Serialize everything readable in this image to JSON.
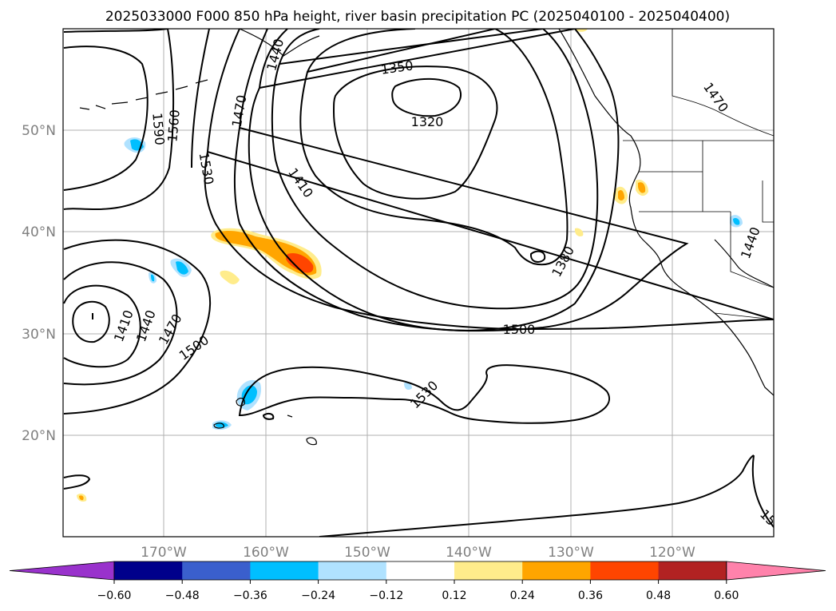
{
  "title": "2025033000 F000 850 hPa height, river basin precipitation PC (2025040100 - 2025040400)",
  "lat_labels": [
    "50°N",
    "40°N",
    "30°N",
    "20°N"
  ],
  "lon_labels": [
    "170°W",
    "160°W",
    "150°W",
    "140°W",
    "130°W",
    "120°W"
  ],
  "contour_labels": [
    "1320",
    "1350",
    "1380",
    "1410",
    "1410",
    "1440",
    "1440",
    "1440",
    "1470",
    "1470",
    "1470",
    "1500",
    "1500",
    "1530",
    "1530",
    "1560",
    "1590",
    "15"
  ],
  "colorbar": {
    "ticks": [
      "−0.60",
      "−0.48",
      "−0.36",
      "−0.24",
      "−0.12",
      "0.12",
      "0.24",
      "0.36",
      "0.48",
      "0.60"
    ],
    "colors": [
      "#9932cc",
      "#00008b",
      "#3a5fcd",
      "#00bfff",
      "#b0e2ff",
      "#ffffff",
      "#ffec8b",
      "#ffa500",
      "#ff4500",
      "#b22222",
      "#ff82ab"
    ]
  }
}
